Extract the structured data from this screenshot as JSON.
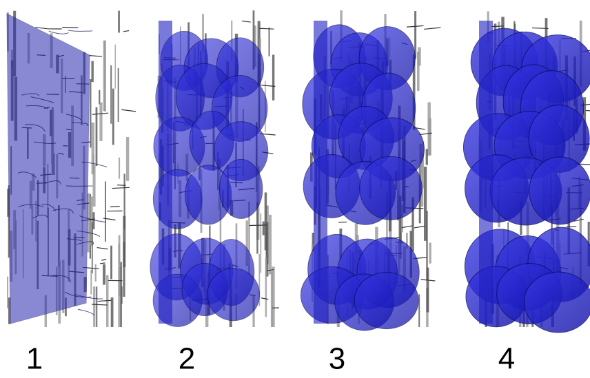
{
  "panels": [
    {
      "label": "1"
    },
    {
      "label": "2"
    },
    {
      "label": "3"
    },
    {
      "label": "4"
    }
  ]
}
